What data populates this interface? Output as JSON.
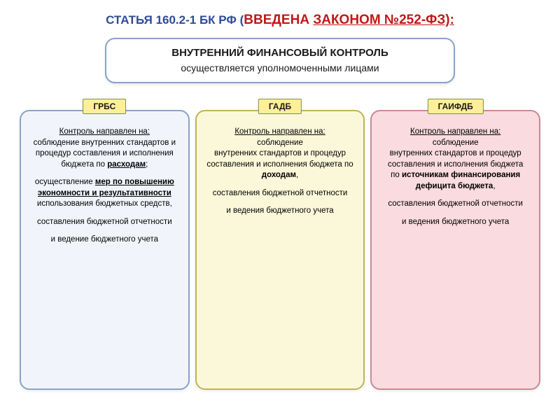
{
  "colors": {
    "title_blue": "#2e4a9a",
    "title_red": "#c01818",
    "main_box_border": "#8aa3c6",
    "main_box_bg": "#ffffff",
    "tag_bg": "#ffef99",
    "tag_border": "#78904a",
    "col1_bg": "#f1f5fb",
    "col1_border": "#8aa3c6",
    "col2_bg": "#fbf8d9",
    "col2_border": "#bdb559",
    "col3_bg": "#fadbdf",
    "col3_border": "#c98b94",
    "text": "#1a1a1a"
  },
  "title": {
    "part_blue": "СТАТЬЯ 160.2-1 БК РФ (",
    "part_red_plain": "ВВЕДЕНА ",
    "part_red_under": "ЗАКОНОМ №252-ФЗ):"
  },
  "main_box": {
    "line1": "ВНУТРЕННИЙ ФИНАНСОВЫЙ КОНТРОЛЬ",
    "line2": "осуществляется уполномоченными лицами"
  },
  "columns": [
    {
      "tag": "ГРБС",
      "lead_label": "Контроль направлен на:",
      "p1_a": "соблюдение внутренних стандартов  и процедур составления  и исполнения бюджета по ",
      "p1_b_bold_udl": "расходам",
      "p1_c": ";",
      "p2_a": "осуществление ",
      "p2_b_bold_udl": "мер по повышению экономности и результативности",
      "p2_c": " использования бюджетных средств,",
      "p3": "составления бюджетной отчетности",
      "p4": "и ведение бюджетного учета"
    },
    {
      "tag": "ГАДБ",
      "lead_label": "Контроль направлен на:",
      "p1_a": "соблюдение",
      "p1_b": "внутренних стандартов и процедур составления и исполнения бюджета по ",
      "p1_c_bold": "доходам",
      "p1_d": ",",
      "p2": "составления бюджетной отчетности",
      "p3": "и ведения бюджетного учета"
    },
    {
      "tag": "ГАИФДБ",
      "lead_label": "Контроль направлен на:",
      "p1_a": "соблюдение",
      "p1_b": "внутренних стандартов и процедур составления и исполнения бюджета",
      "p1_c": "по ",
      "p1_d_bold": "источникам финансирования дефицита бюджета",
      "p1_e": ",",
      "p2": "составления бюджетной отчетности",
      "p3": "и ведения бюджетного учета"
    }
  ]
}
